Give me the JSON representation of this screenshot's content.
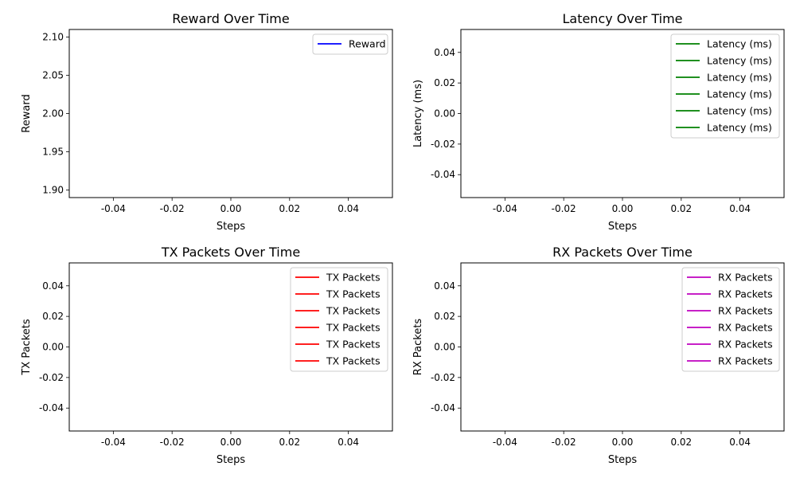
{
  "chart_data": [
    {
      "type": "line",
      "title": "Reward Over Time",
      "xlabel": "Steps",
      "ylabel": "Reward",
      "xlim": [
        -0.055,
        0.055
      ],
      "ylim": [
        1.89,
        2.11
      ],
      "xticks": [
        "-0.04",
        "-0.02",
        "0.00",
        "0.02",
        "0.04"
      ],
      "xtick_values": [
        -0.04,
        -0.02,
        0,
        0.02,
        0.04
      ],
      "yticks": [
        "1.90",
        "1.95",
        "2.00",
        "2.05",
        "2.10"
      ],
      "ytick_values": [
        1.9,
        1.95,
        2.0,
        2.05,
        2.1
      ],
      "grid": false,
      "legend_position": "top-right",
      "series": [
        {
          "name": "Reward",
          "color": "#0000ff",
          "x": [],
          "y": []
        }
      ]
    },
    {
      "type": "line",
      "title": "Latency Over Time",
      "xlabel": "Steps",
      "ylabel": "Latency (ms)",
      "xlim": [
        -0.055,
        0.055
      ],
      "ylim": [
        -0.055,
        0.055
      ],
      "xticks": [
        "-0.04",
        "-0.02",
        "0.00",
        "0.02",
        "0.04"
      ],
      "xtick_values": [
        -0.04,
        -0.02,
        0,
        0.02,
        0.04
      ],
      "yticks": [
        "-0.04",
        "-0.02",
        "0.00",
        "0.02",
        "0.04"
      ],
      "ytick_values": [
        -0.04,
        -0.02,
        0,
        0.02,
        0.04
      ],
      "grid": false,
      "legend_position": "top-right",
      "series": [
        {
          "name": "Latency (ms)",
          "color": "#008000",
          "x": [],
          "y": []
        },
        {
          "name": "Latency (ms)",
          "color": "#008000",
          "x": [],
          "y": []
        },
        {
          "name": "Latency (ms)",
          "color": "#008000",
          "x": [],
          "y": []
        },
        {
          "name": "Latency (ms)",
          "color": "#008000",
          "x": [],
          "y": []
        },
        {
          "name": "Latency (ms)",
          "color": "#008000",
          "x": [],
          "y": []
        },
        {
          "name": "Latency (ms)",
          "color": "#008000",
          "x": [],
          "y": []
        }
      ]
    },
    {
      "type": "line",
      "title": "TX Packets Over Time",
      "xlabel": "Steps",
      "ylabel": "TX Packets",
      "xlim": [
        -0.055,
        0.055
      ],
      "ylim": [
        -0.055,
        0.055
      ],
      "xticks": [
        "-0.04",
        "-0.02",
        "0.00",
        "0.02",
        "0.04"
      ],
      "xtick_values": [
        -0.04,
        -0.02,
        0,
        0.02,
        0.04
      ],
      "yticks": [
        "-0.04",
        "-0.02",
        "0.00",
        "0.02",
        "0.04"
      ],
      "ytick_values": [
        -0.04,
        -0.02,
        0,
        0.02,
        0.04
      ],
      "grid": false,
      "legend_position": "top-right",
      "series": [
        {
          "name": "TX Packets",
          "color": "#ff0000",
          "x": [],
          "y": []
        },
        {
          "name": "TX Packets",
          "color": "#ff0000",
          "x": [],
          "y": []
        },
        {
          "name": "TX Packets",
          "color": "#ff0000",
          "x": [],
          "y": []
        },
        {
          "name": "TX Packets",
          "color": "#ff0000",
          "x": [],
          "y": []
        },
        {
          "name": "TX Packets",
          "color": "#ff0000",
          "x": [],
          "y": []
        },
        {
          "name": "TX Packets",
          "color": "#ff0000",
          "x": [],
          "y": []
        }
      ]
    },
    {
      "type": "line",
      "title": "RX Packets Over Time",
      "xlabel": "Steps",
      "ylabel": "RX Packets",
      "xlim": [
        -0.055,
        0.055
      ],
      "ylim": [
        -0.055,
        0.055
      ],
      "xticks": [
        "-0.04",
        "-0.02",
        "0.00",
        "0.02",
        "0.04"
      ],
      "xtick_values": [
        -0.04,
        -0.02,
        0,
        0.02,
        0.04
      ],
      "yticks": [
        "-0.04",
        "-0.02",
        "0.00",
        "0.02",
        "0.04"
      ],
      "ytick_values": [
        -0.04,
        -0.02,
        0,
        0.02,
        0.04
      ],
      "grid": false,
      "legend_position": "top-right",
      "series": [
        {
          "name": "RX Packets",
          "color": "#bf00bf",
          "x": [],
          "y": []
        },
        {
          "name": "RX Packets",
          "color": "#bf00bf",
          "x": [],
          "y": []
        },
        {
          "name": "RX Packets",
          "color": "#bf00bf",
          "x": [],
          "y": []
        },
        {
          "name": "RX Packets",
          "color": "#bf00bf",
          "x": [],
          "y": []
        },
        {
          "name": "RX Packets",
          "color": "#bf00bf",
          "x": [],
          "y": []
        },
        {
          "name": "RX Packets",
          "color": "#bf00bf",
          "x": [],
          "y": []
        }
      ]
    }
  ]
}
